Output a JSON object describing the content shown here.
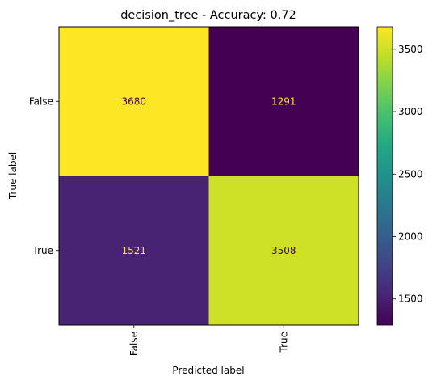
{
  "chart_data": {
    "type": "heatmap",
    "title": "decision_tree - Accuracy: 0.72",
    "xlabel": "Predicted label",
    "ylabel": "True label",
    "x_categories": [
      "False",
      "True"
    ],
    "y_categories": [
      "False",
      "True"
    ],
    "values": [
      [
        3680,
        1291
      ],
      [
        1521,
        3508
      ]
    ],
    "value_labels": [
      [
        "3680",
        "1291"
      ],
      [
        "1521",
        "3508"
      ]
    ],
    "colormap": "viridis",
    "colorbar": {
      "vmin": 1291,
      "vmax": 3680,
      "ticks": [
        1500,
        2000,
        2500,
        3000,
        3500
      ],
      "tick_labels": [
        "1500",
        "2000",
        "2500",
        "3000",
        "3500"
      ]
    },
    "label_colors": {
      "on_light": "#440154",
      "on_dark": "#fde725"
    },
    "grid": false
  }
}
